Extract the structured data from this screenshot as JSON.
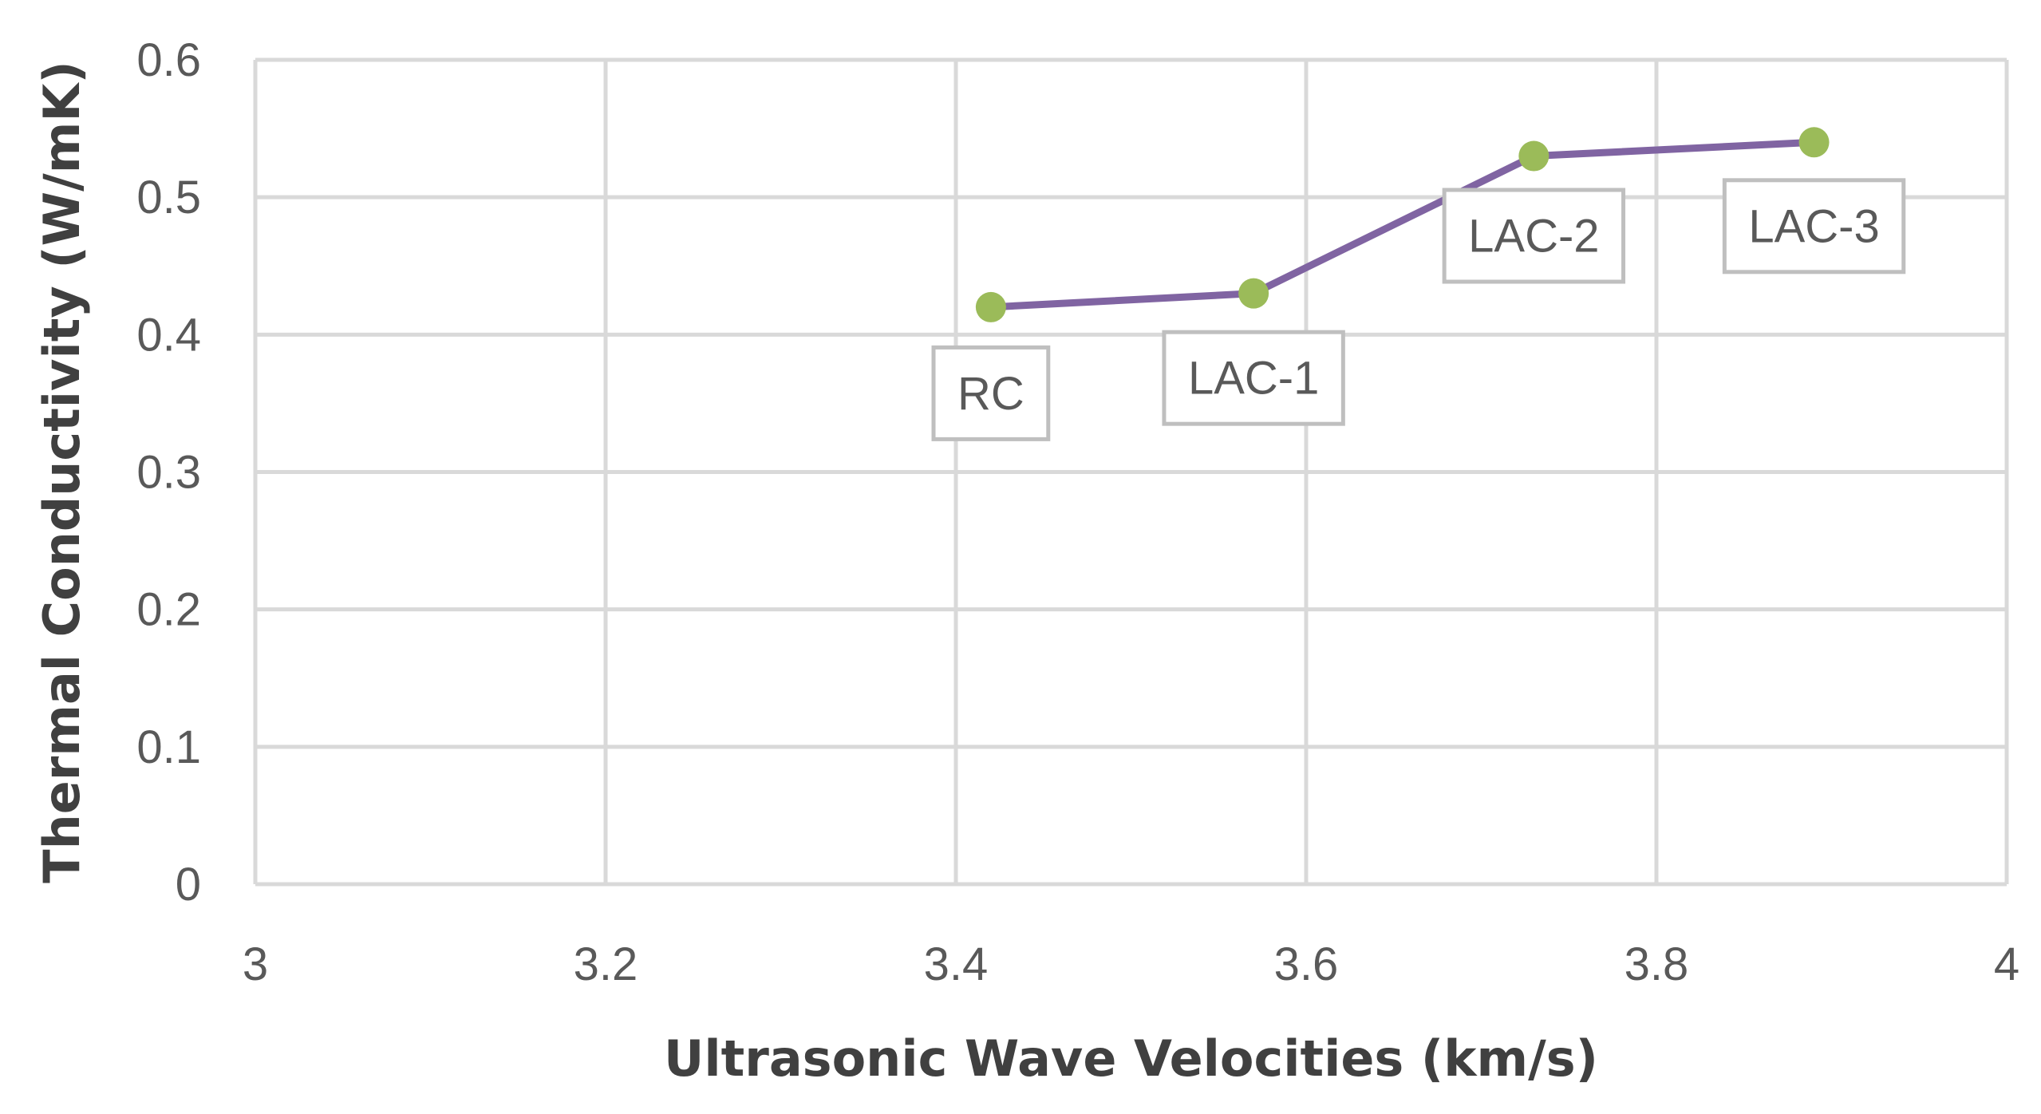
{
  "chart_data": {
    "type": "scatter",
    "title": "",
    "xlabel": "Ultrasonic Wave Velocities (km/s)",
    "ylabel": "Thermal Conductivity (W/mK)",
    "xlim": [
      3,
      4
    ],
    "ylim": [
      0,
      0.6
    ],
    "xticks": [
      3,
      3.2,
      3.4,
      3.6,
      3.8,
      4
    ],
    "xtick_labels": [
      "3",
      "3.2",
      "3.4",
      "3.6",
      "3.8",
      "4"
    ],
    "yticks": [
      0,
      0.1,
      0.2,
      0.3,
      0.4,
      0.5,
      0.6
    ],
    "ytick_labels": [
      "0",
      "0.1",
      "0.2",
      "0.3",
      "0.4",
      "0.5",
      "0.6"
    ],
    "grid": true,
    "series": [
      {
        "name": "Thermal Conductivity",
        "line_color": "#8064a2",
        "marker_color": "#9bbb59",
        "points": [
          {
            "label": "RC",
            "x": 3.42,
            "y": 0.42,
            "label_position": "below"
          },
          {
            "label": "LAC-1",
            "x": 3.57,
            "y": 0.43,
            "label_position": "below"
          },
          {
            "label": "LAC-2",
            "x": 3.73,
            "y": 0.53,
            "label_position": "below"
          },
          {
            "label": "LAC-3",
            "x": 3.89,
            "y": 0.54,
            "label_position": "below"
          }
        ]
      }
    ]
  }
}
